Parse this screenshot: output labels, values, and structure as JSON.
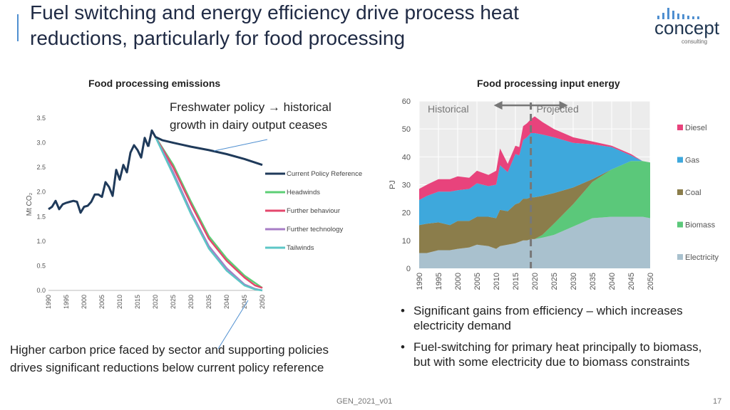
{
  "slide": {
    "title_line1": "Fuel switching and energy efficiency drive process heat",
    "title_line2": "reductions, particularly for food processing",
    "logo_word": "concept",
    "logo_sub": "consulting",
    "footer": "GEN_2021_v01",
    "page_number": "17",
    "accent_color": "#4f8fd0"
  },
  "left": {
    "heading": "Food processing emissions",
    "callout_top_line1": "Freshwater policy → historical",
    "callout_top_line2": "growth in dairy output ceases",
    "callout_bottom_line1": "Higher carbon price faced by sector and supporting policies",
    "callout_bottom_line2": "drives significant reductions below current policy reference"
  },
  "right": {
    "heading": "Food processing input energy",
    "bullets": [
      "Significant gains from efficiency – which increases electricity demand",
      "Fuel-switching for primary heat principally to biomass, but with some electricity due to biomass constraints"
    ]
  },
  "chart_data": [
    {
      "type": "line",
      "title": "Food processing emissions",
      "ylabel": "Mt CO₂",
      "xlabel": "",
      "ylim": [
        0,
        3.5
      ],
      "yticks": [
        "0.0",
        "0.5",
        "1.0",
        "1.5",
        "2.0",
        "2.5",
        "3.0",
        "3.5"
      ],
      "xticks": [
        "1990",
        "1995",
        "2000",
        "2005",
        "2010",
        "2015",
        "2020",
        "2025",
        "2030",
        "2035",
        "2040",
        "2045",
        "2050"
      ],
      "legend_position": "right",
      "series": [
        {
          "name": "Historical",
          "color": "#1f3a5a",
          "legend": false,
          "x": [
            1990,
            1991,
            1992,
            1993,
            1994,
            1995,
            1996,
            1997,
            1998,
            1999,
            2000,
            2001,
            2002,
            2003,
            2004,
            2005,
            2006,
            2007,
            2008,
            2009,
            2010,
            2011,
            2012,
            2013,
            2014,
            2015,
            2016,
            2017,
            2018
          ],
          "y": [
            1.65,
            1.7,
            1.82,
            1.65,
            1.75,
            1.78,
            1.8,
            1.82,
            1.8,
            1.58,
            1.7,
            1.72,
            1.8,
            1.95,
            1.95,
            1.9,
            2.2,
            2.1,
            1.92,
            2.45,
            2.25,
            2.55,
            2.4,
            2.8,
            2.95,
            2.85,
            2.7,
            3.1,
            2.92
          ]
        },
        {
          "name": "Current Policy Reference",
          "color": "#1f3a5a",
          "legend": true,
          "x": [
            2018,
            2019,
            2020,
            2022,
            2025,
            2030,
            2035,
            2040,
            2045,
            2050
          ],
          "y": [
            2.92,
            3.25,
            3.12,
            3.05,
            3.0,
            2.92,
            2.85,
            2.77,
            2.67,
            2.55
          ]
        },
        {
          "name": "Headwinds",
          "color": "#5ccf75",
          "legend": true,
          "x": [
            2018,
            2019,
            2020,
            2025,
            2030,
            2035,
            2040,
            2045,
            2048,
            2050
          ],
          "y": [
            2.92,
            3.25,
            3.12,
            2.55,
            1.8,
            1.1,
            0.65,
            0.3,
            0.15,
            0.05
          ]
        },
        {
          "name": "Further behaviour",
          "color": "#e4476c",
          "legend": true,
          "x": [
            2018,
            2019,
            2020,
            2025,
            2030,
            2035,
            2040,
            2045,
            2048,
            2050
          ],
          "y": [
            2.92,
            3.25,
            3.12,
            2.5,
            1.75,
            1.05,
            0.6,
            0.26,
            0.1,
            0.05
          ]
        },
        {
          "name": "Further technology",
          "color": "#a77dc6",
          "legend": true,
          "x": [
            2018,
            2019,
            2020,
            2025,
            2030,
            2035,
            2040,
            2045,
            2048,
            2050
          ],
          "y": [
            2.92,
            3.25,
            3.12,
            2.4,
            1.6,
            0.9,
            0.45,
            0.12,
            0.03,
            0.0
          ]
        },
        {
          "name": "Tailwinds",
          "color": "#5cc6c6",
          "legend": true,
          "x": [
            2018,
            2019,
            2020,
            2025,
            2030,
            2035,
            2040,
            2045,
            2048,
            2050
          ],
          "y": [
            2.92,
            3.25,
            3.12,
            2.35,
            1.55,
            0.85,
            0.4,
            0.1,
            0.02,
            0.0
          ]
        }
      ]
    },
    {
      "type": "area",
      "title": "Food processing input energy",
      "ylabel": "PJ",
      "xlabel": "",
      "ylim": [
        0,
        60
      ],
      "yticks": [
        "0",
        "10",
        "20",
        "30",
        "40",
        "50",
        "60"
      ],
      "xticks": [
        "1990",
        "1995",
        "2000",
        "2005",
        "2010",
        "2015",
        "2020",
        "2025",
        "2030",
        "2035",
        "2040",
        "2045",
        "2050"
      ],
      "x": [
        1990,
        1992,
        1995,
        1998,
        2000,
        2003,
        2005,
        2008,
        2010,
        2011,
        2013,
        2015,
        2016,
        2017,
        2018,
        2019,
        2020,
        2022,
        2025,
        2030,
        2035,
        2040,
        2045,
        2048,
        2050
      ],
      "annotations": [
        "Historical",
        "Projected"
      ],
      "legend_position": "right",
      "series": [
        {
          "name": "Electricity",
          "color": "#a9c1ce",
          "values": [
            5.5,
            5.5,
            6.5,
            6.5,
            7,
            7.5,
            8.5,
            8,
            7,
            8,
            8.5,
            9,
            9.5,
            10,
            10,
            10.5,
            10.5,
            11,
            12,
            15,
            18,
            18.5,
            18.5,
            18.5,
            18
          ]
        },
        {
          "name": "Biomass",
          "color": "#5bc87a",
          "values": [
            0,
            0,
            0,
            0,
            0,
            0,
            0,
            0,
            0,
            0,
            0,
            0,
            0,
            0,
            0,
            0,
            0,
            1,
            4,
            8,
            13,
            17,
            20,
            20,
            20
          ]
        },
        {
          "name": "Coal",
          "color": "#8b7d4b",
          "values": [
            10,
            10.5,
            10,
            9,
            10,
            9.5,
            10,
            10.5,
            11,
            13,
            12,
            14,
            14,
            15,
            15,
            15,
            15,
            14,
            11,
            6,
            1,
            0,
            0,
            0,
            0
          ]
        },
        {
          "name": "Gas",
          "color": "#3ea8dc",
          "values": [
            9,
            10,
            11,
            12,
            11,
            11.5,
            12,
            11,
            12,
            16,
            14,
            18,
            17,
            21,
            22,
            23,
            23,
            22,
            20,
            16,
            12.5,
            8,
            2,
            0,
            0
          ]
        },
        {
          "name": "Diesel",
          "color": "#e8437c",
          "values": [
            4,
            4,
            4.5,
            4.5,
            5,
            4,
            4.5,
            4,
            5,
            6,
            3,
            3,
            3,
            5,
            5,
            5,
            6,
            4.5,
            3,
            2,
            1,
            0.5,
            0.5,
            0,
            0
          ]
        }
      ]
    }
  ]
}
